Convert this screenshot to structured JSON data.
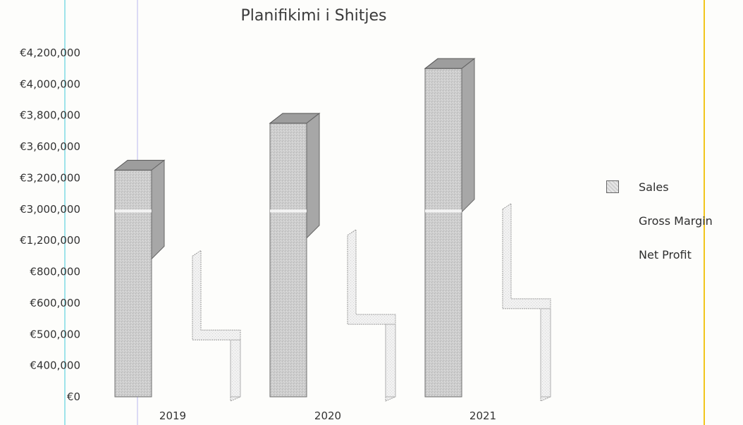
{
  "chart_data": {
    "type": "bar",
    "title": "Planifikimi i Shitjes",
    "categories": [
      "2019",
      "2020",
      "2021"
    ],
    "y_tick_labels": [
      "€0",
      "€400,000",
      "€500,000",
      "€600,000",
      "€800,000",
      "€1,200,000",
      "€3,000,000",
      "€3,200,000",
      "€3,600,000",
      "€3,800,000",
      "€4,000,000",
      "€4,200,000"
    ],
    "series": [
      {
        "name": "Sales",
        "values": [
          3300000,
          3750000,
          4100000
        ],
        "color": "#c8c8c8"
      },
      {
        "name": "Gross Margin",
        "values": [
          1000000,
          1500000,
          3000000
        ],
        "color": "#f4f4f4"
      },
      {
        "name": "Net Profit",
        "values": [
          500000,
          550000,
          600000
        ],
        "color": "#eeeeee"
      }
    ],
    "legend": {
      "position": "right"
    },
    "style": "3d-bar",
    "grid": false
  },
  "colors": {
    "background": "#fdfdfb",
    "axis_text": "#333333",
    "guide_cyan": "#9fe3ea",
    "guide_lavender": "#b9b7ee",
    "guide_yellow": "#f2c51c"
  }
}
